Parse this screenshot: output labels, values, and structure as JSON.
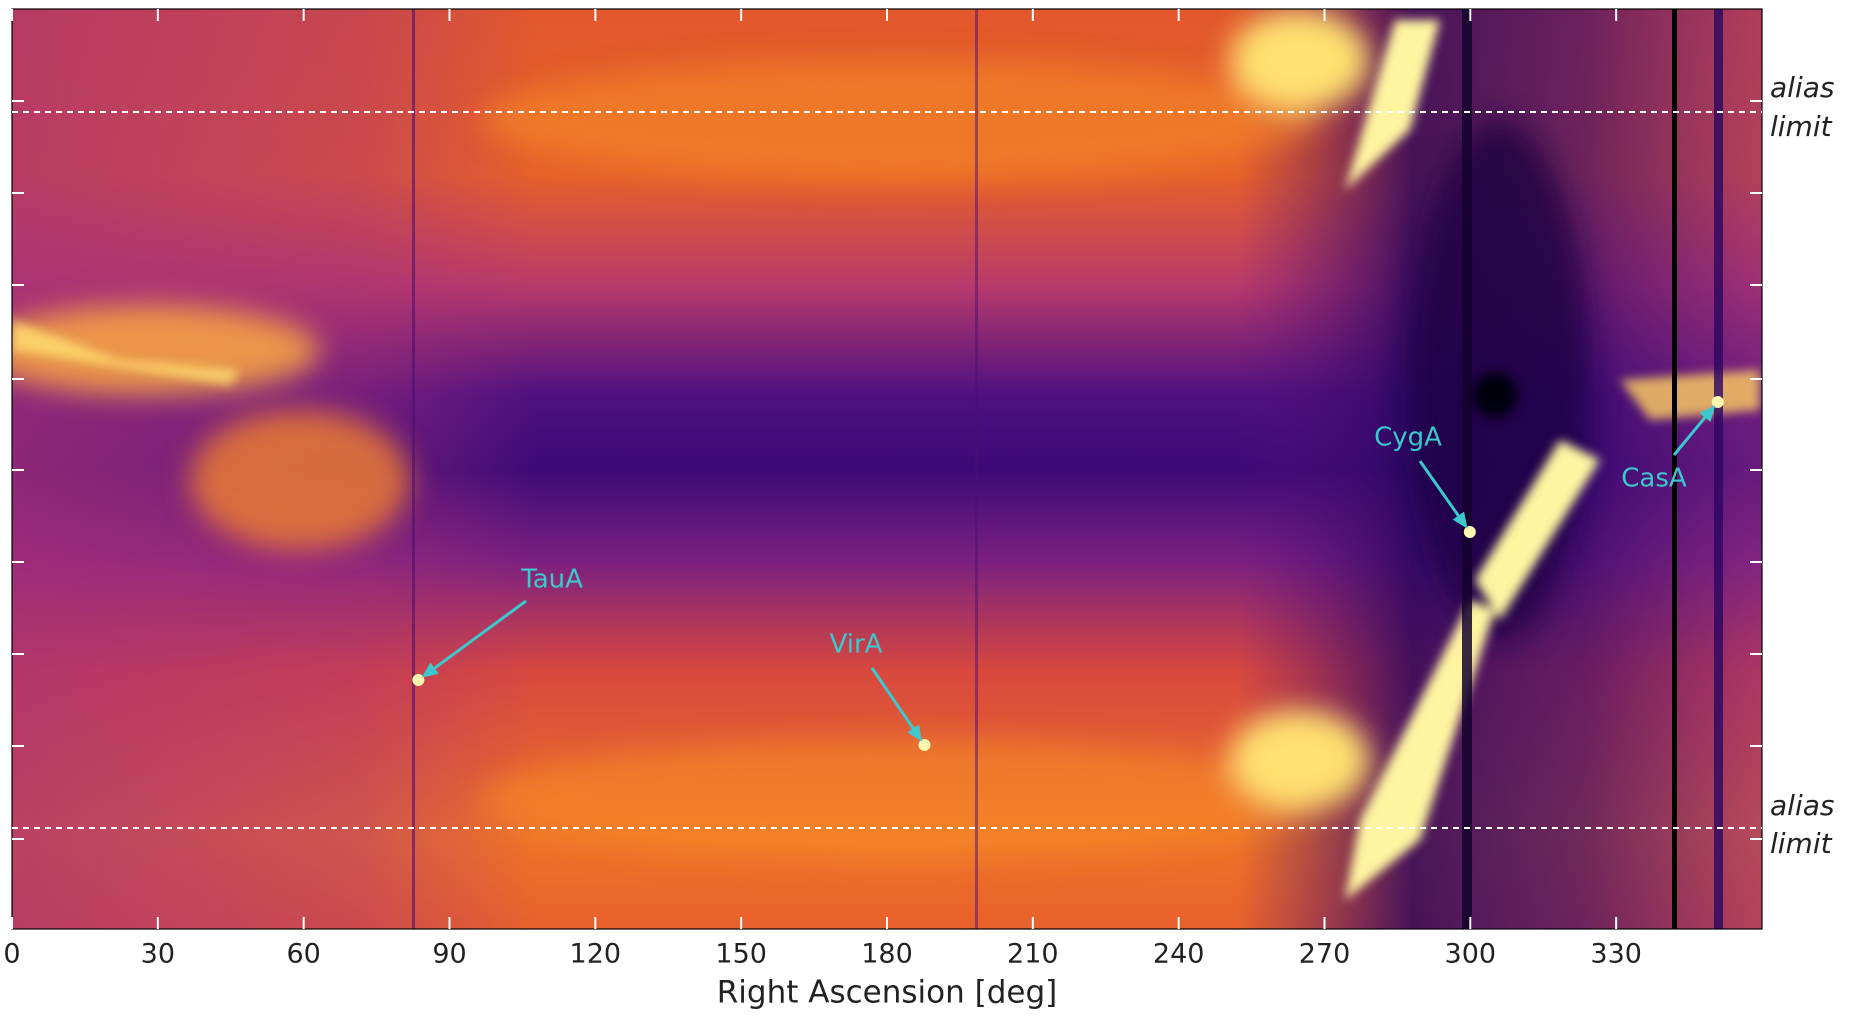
{
  "chart_data": {
    "type": "image",
    "x_label": "Right Ascension [deg]",
    "xlim": [
      0,
      360
    ],
    "xticks": [
      0,
      30,
      60,
      90,
      120,
      150,
      180,
      210,
      240,
      270,
      300,
      330
    ],
    "annotations": [
      {
        "text": "TauA",
        "x": 83.6
      },
      {
        "text": "VirA",
        "x": 187.7
      },
      {
        "text": "CygA",
        "x": 299.9
      },
      {
        "text": "CasA",
        "x": 350.9
      }
    ],
    "hlines": [
      {
        "label": [
          "alias",
          "limit"
        ]
      },
      {
        "label": [
          "alias",
          "limit"
        ]
      }
    ]
  }
}
